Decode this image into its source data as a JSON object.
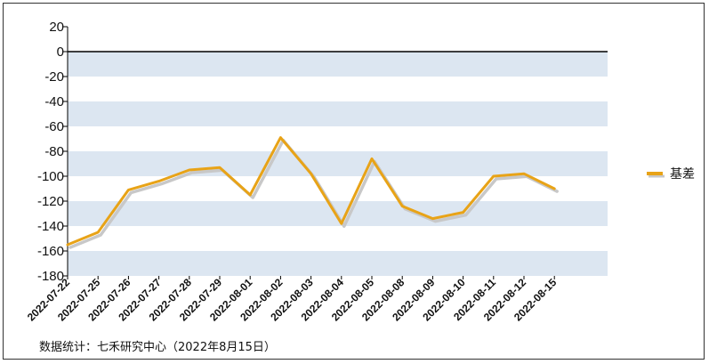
{
  "chart_data": {
    "type": "line",
    "categories": [
      "2022-07-22",
      "2022-07-25",
      "2022-07-26",
      "2022-07-27",
      "2022-07-28",
      "2022-07-29",
      "2022-08-01",
      "2022-08-02",
      "2022-08-03",
      "2022-08-04",
      "2022-08-05",
      "2022-08-08",
      "2022-08-09",
      "2022-08-10",
      "2022-08-11",
      "2022-08-12",
      "2022-08-15"
    ],
    "series": [
      {
        "name": "基差",
        "values": [
          -155,
          -145,
          -111,
          -104,
          -95,
          -93,
          -115,
          -69,
          -98,
          -138,
          -86,
          -124,
          -134,
          -129,
          -100,
          -98,
          -110
        ],
        "color": "#E8A317"
      }
    ],
    "ylim": [
      -180,
      20
    ],
    "yticks": [
      20,
      0,
      -20,
      -40,
      -60,
      -80,
      -100,
      -120,
      -140,
      -160,
      -180
    ],
    "grid": "alternating horizontal bands",
    "band_color": "#DCE6F1",
    "legend_position": "right"
  },
  "footer": {
    "source": "数据统计：七禾研究中心（2022年8月15日）"
  }
}
